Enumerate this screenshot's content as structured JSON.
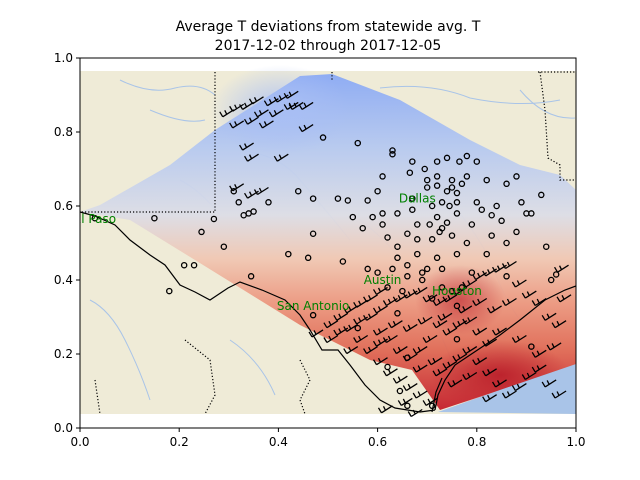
{
  "chart_data": {
    "type": "heatmap",
    "title_lines": [
      "Average T deviations from statewide avg. T",
      "2017-12-02 through 2017-12-05"
    ],
    "xlim": [
      0.0,
      1.0
    ],
    "ylim": [
      0.0,
      1.0
    ],
    "xticks": [
      "0.0",
      "0.2",
      "0.4",
      "0.6",
      "0.8",
      "1.0"
    ],
    "yticks": [
      "0.0",
      "0.2",
      "0.4",
      "0.6",
      "0.8",
      "1.0"
    ],
    "grid": false,
    "colors": {
      "land": "#efebd7",
      "water": "#a9c4e8",
      "rivers": "#a9c4e8",
      "warm": "#c41e2a",
      "cool": "#8aa9f5",
      "neutral": "#dcdde6",
      "cities": "#008000"
    },
    "cities": [
      {
        "name": "El Paso",
        "x": 0.03,
        "y": 0.565
      },
      {
        "name": "Dallas",
        "x": 0.68,
        "y": 0.62
      },
      {
        "name": "Austin",
        "x": 0.61,
        "y": 0.4
      },
      {
        "name": "San Antonio",
        "x": 0.47,
        "y": 0.33
      },
      {
        "name": "Houston",
        "x": 0.76,
        "y": 0.37
      }
    ],
    "station_circles": [
      [
        0.03,
        0.567
      ],
      [
        0.15,
        0.567
      ],
      [
        0.18,
        0.37
      ],
      [
        0.21,
        0.44
      ],
      [
        0.23,
        0.44
      ],
      [
        0.245,
        0.53
      ],
      [
        0.27,
        0.565
      ],
      [
        0.29,
        0.49
      ],
      [
        0.31,
        0.64
      ],
      [
        0.32,
        0.61
      ],
      [
        0.33,
        0.575
      ],
      [
        0.34,
        0.58
      ],
      [
        0.35,
        0.585
      ],
      [
        0.345,
        0.41
      ],
      [
        0.38,
        0.61
      ],
      [
        0.42,
        0.47
      ],
      [
        0.44,
        0.64
      ],
      [
        0.46,
        0.46
      ],
      [
        0.47,
        0.525
      ],
      [
        0.47,
        0.62
      ],
      [
        0.49,
        0.785
      ],
      [
        0.52,
        0.62
      ],
      [
        0.53,
        0.45
      ],
      [
        0.54,
        0.615
      ],
      [
        0.55,
        0.57
      ],
      [
        0.56,
        0.77
      ],
      [
        0.58,
        0.615
      ],
      [
        0.59,
        0.57
      ],
      [
        0.6,
        0.64
      ],
      [
        0.61,
        0.58
      ],
      [
        0.61,
        0.55
      ],
      [
        0.62,
        0.515
      ],
      [
        0.63,
        0.75
      ],
      [
        0.63,
        0.74
      ],
      [
        0.64,
        0.58
      ],
      [
        0.64,
        0.49
      ],
      [
        0.64,
        0.46
      ],
      [
        0.63,
        0.43
      ],
      [
        0.6,
        0.42
      ],
      [
        0.62,
        0.38
      ],
      [
        0.66,
        0.525
      ],
      [
        0.67,
        0.72
      ],
      [
        0.67,
        0.62
      ],
      [
        0.68,
        0.51
      ],
      [
        0.68,
        0.47
      ],
      [
        0.69,
        0.42
      ],
      [
        0.7,
        0.67
      ],
      [
        0.7,
        0.65
      ],
      [
        0.705,
        0.55
      ],
      [
        0.71,
        0.6
      ],
      [
        0.71,
        0.51
      ],
      [
        0.72,
        0.72
      ],
      [
        0.72,
        0.68
      ],
      [
        0.72,
        0.655
      ],
      [
        0.725,
        0.53
      ],
      [
        0.73,
        0.54
      ],
      [
        0.74,
        0.64
      ],
      [
        0.75,
        0.67
      ],
      [
        0.75,
        0.65
      ],
      [
        0.76,
        0.47
      ],
      [
        0.76,
        0.58
      ],
      [
        0.76,
        0.635
      ],
      [
        0.765,
        0.72
      ],
      [
        0.77,
        0.66
      ],
      [
        0.78,
        0.68
      ],
      [
        0.78,
        0.5
      ],
      [
        0.79,
        0.42
      ],
      [
        0.8,
        0.61
      ],
      [
        0.8,
        0.72
      ],
      [
        0.81,
        0.59
      ],
      [
        0.82,
        0.67
      ],
      [
        0.82,
        0.47
      ],
      [
        0.83,
        0.52
      ],
      [
        0.84,
        0.6
      ],
      [
        0.85,
        0.56
      ],
      [
        0.86,
        0.5
      ],
      [
        0.86,
        0.41
      ],
      [
        0.88,
        0.68
      ],
      [
        0.88,
        0.53
      ],
      [
        0.89,
        0.61
      ],
      [
        0.9,
        0.58
      ],
      [
        0.91,
        0.58
      ],
      [
        0.91,
        0.22
      ],
      [
        0.93,
        0.63
      ],
      [
        0.94,
        0.49
      ],
      [
        0.95,
        0.4
      ],
      [
        0.96,
        0.415
      ],
      [
        0.73,
        0.43
      ],
      [
        0.75,
        0.37
      ],
      [
        0.77,
        0.38
      ],
      [
        0.72,
        0.46
      ],
      [
        0.74,
        0.555
      ],
      [
        0.67,
        0.59
      ],
      [
        0.7,
        0.43
      ],
      [
        0.66,
        0.44
      ],
      [
        0.57,
        0.54
      ],
      [
        0.86,
        0.66
      ],
      [
        0.76,
        0.61
      ],
      [
        0.73,
        0.61
      ],
      [
        0.83,
        0.575
      ],
      [
        0.79,
        0.55
      ],
      [
        0.72,
        0.57
      ],
      [
        0.75,
        0.52
      ],
      [
        0.61,
        0.68
      ],
      [
        0.665,
        0.69
      ],
      [
        0.695,
        0.7
      ],
      [
        0.74,
        0.73
      ],
      [
        0.78,
        0.735
      ],
      [
        0.745,
        0.6
      ],
      [
        0.68,
        0.55
      ],
      [
        0.65,
        0.37
      ],
      [
        0.58,
        0.43
      ],
      [
        0.47,
        0.305
      ],
      [
        0.56,
        0.27
      ],
      [
        0.66,
        0.41
      ],
      [
        0.71,
        0.35
      ],
      [
        0.69,
        0.4
      ],
      [
        0.73,
        0.38
      ],
      [
        0.76,
        0.33
      ],
      [
        0.64,
        0.31
      ],
      [
        0.76,
        0.24
      ],
      [
        0.66,
        0.19
      ],
      [
        0.62,
        0.165
      ],
      [
        0.645,
        0.1
      ],
      [
        0.71,
        0.06
      ],
      [
        0.66,
        0.06
      ]
    ],
    "wind_barbs": [
      [
        0.31,
        0.86
      ],
      [
        0.33,
        0.875
      ],
      [
        0.35,
        0.88
      ],
      [
        0.37,
        0.895
      ],
      [
        0.4,
        0.89
      ],
      [
        0.42,
        0.9
      ],
      [
        0.44,
        0.91
      ],
      [
        0.45,
        0.88
      ],
      [
        0.47,
        0.88
      ],
      [
        0.38,
        0.86
      ],
      [
        0.33,
        0.83
      ],
      [
        0.36,
        0.84
      ],
      [
        0.35,
        0.77
      ],
      [
        0.36,
        0.74
      ],
      [
        0.33,
        0.66
      ],
      [
        0.36,
        0.64
      ],
      [
        0.38,
        0.65
      ],
      [
        0.42,
        0.74
      ],
      [
        0.47,
        0.82
      ],
      [
        0.44,
        0.88
      ],
      [
        0.41,
        0.86
      ],
      [
        0.39,
        0.83
      ],
      [
        0.49,
        0.265
      ],
      [
        0.52,
        0.29
      ],
      [
        0.54,
        0.31
      ],
      [
        0.56,
        0.33
      ],
      [
        0.58,
        0.345
      ],
      [
        0.6,
        0.36
      ],
      [
        0.62,
        0.38
      ],
      [
        0.52,
        0.25
      ],
      [
        0.54,
        0.27
      ],
      [
        0.56,
        0.28
      ],
      [
        0.58,
        0.3
      ],
      [
        0.6,
        0.31
      ],
      [
        0.62,
        0.33
      ],
      [
        0.64,
        0.35
      ],
      [
        0.66,
        0.36
      ],
      [
        0.68,
        0.37
      ],
      [
        0.7,
        0.38
      ],
      [
        0.72,
        0.36
      ],
      [
        0.74,
        0.35
      ],
      [
        0.76,
        0.36
      ],
      [
        0.78,
        0.38
      ],
      [
        0.8,
        0.4
      ],
      [
        0.82,
        0.42
      ],
      [
        0.84,
        0.43
      ],
      [
        0.86,
        0.44
      ],
      [
        0.88,
        0.45
      ],
      [
        0.9,
        0.4
      ],
      [
        0.92,
        0.37
      ],
      [
        0.94,
        0.35
      ],
      [
        0.96,
        0.31
      ],
      [
        0.98,
        0.29
      ],
      [
        0.97,
        0.23
      ],
      [
        0.94,
        0.21
      ],
      [
        0.9,
        0.25
      ],
      [
        0.86,
        0.27
      ],
      [
        0.84,
        0.24
      ],
      [
        0.82,
        0.27
      ],
      [
        0.8,
        0.3
      ],
      [
        0.78,
        0.29
      ],
      [
        0.76,
        0.27
      ],
      [
        0.74,
        0.29
      ],
      [
        0.72,
        0.25
      ],
      [
        0.7,
        0.22
      ],
      [
        0.68,
        0.2
      ],
      [
        0.66,
        0.22
      ],
      [
        0.64,
        0.25
      ],
      [
        0.62,
        0.27
      ],
      [
        0.6,
        0.22
      ],
      [
        0.62,
        0.19
      ],
      [
        0.64,
        0.16
      ],
      [
        0.66,
        0.14
      ],
      [
        0.68,
        0.12
      ],
      [
        0.7,
        0.1
      ],
      [
        0.72,
        0.08
      ],
      [
        0.74,
        0.16
      ],
      [
        0.76,
        0.18
      ],
      [
        0.78,
        0.2
      ],
      [
        0.8,
        0.22
      ],
      [
        0.82,
        0.19
      ],
      [
        0.84,
        0.16
      ],
      [
        0.86,
        0.13
      ],
      [
        0.88,
        0.1
      ],
      [
        0.9,
        0.12
      ],
      [
        0.92,
        0.15
      ],
      [
        0.94,
        0.17
      ],
      [
        0.96,
        0.13
      ],
      [
        0.98,
        0.1
      ],
      [
        0.63,
        0.06
      ],
      [
        0.67,
        0.08
      ],
      [
        0.69,
        0.05
      ],
      [
        0.99,
        0.36
      ],
      [
        0.985,
        0.44
      ],
      [
        0.88,
        0.35
      ],
      [
        0.85,
        0.33
      ],
      [
        0.82,
        0.35
      ],
      [
        0.79,
        0.33
      ],
      [
        0.75,
        0.31
      ],
      [
        0.71,
        0.3
      ],
      [
        0.68,
        0.28
      ],
      [
        0.65,
        0.29
      ],
      [
        0.62,
        0.24
      ],
      [
        0.58,
        0.25
      ],
      [
        0.56,
        0.22
      ],
      [
        0.7,
        0.17
      ],
      [
        0.73,
        0.19
      ],
      [
        0.77,
        0.13
      ],
      [
        0.8,
        0.15
      ],
      [
        0.84,
        0.09
      ]
    ]
  }
}
